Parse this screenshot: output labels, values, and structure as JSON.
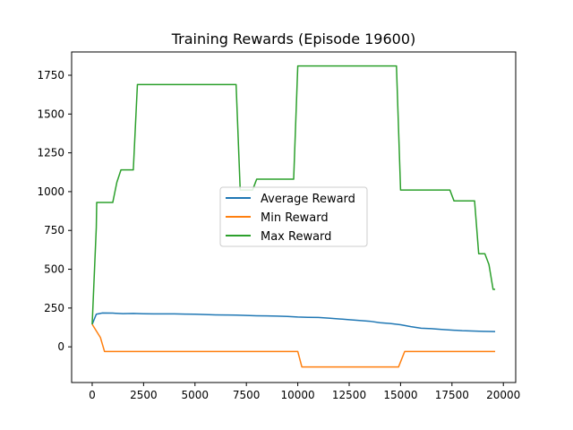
{
  "chart_data": {
    "type": "line",
    "title": "Training Rewards (Episode 19600)",
    "xlabel": "",
    "ylabel": "",
    "xlim": [
      -1000,
      20600
    ],
    "ylim": [
      -230,
      1900
    ],
    "x_ticks": [
      0,
      2500,
      5000,
      7500,
      10000,
      12500,
      15000,
      17500,
      20000
    ],
    "y_ticks": [
      0,
      250,
      500,
      750,
      1000,
      1250,
      1500,
      1750
    ],
    "grid": false,
    "legend_position": "center",
    "series": [
      {
        "name": "Average Reward",
        "color": "#1f77b4",
        "points": [
          [
            0,
            145
          ],
          [
            200,
            210
          ],
          [
            500,
            218
          ],
          [
            1000,
            217
          ],
          [
            1500,
            214
          ],
          [
            2000,
            215
          ],
          [
            2500,
            213
          ],
          [
            3000,
            212
          ],
          [
            3500,
            212
          ],
          [
            4000,
            212
          ],
          [
            4500,
            211
          ],
          [
            5000,
            210
          ],
          [
            5500,
            208
          ],
          [
            6000,
            206
          ],
          [
            6500,
            205
          ],
          [
            7000,
            204
          ],
          [
            7500,
            202
          ],
          [
            8000,
            200
          ],
          [
            8500,
            199
          ],
          [
            9000,
            198
          ],
          [
            9500,
            196
          ],
          [
            10000,
            192
          ],
          [
            10500,
            190
          ],
          [
            11000,
            189
          ],
          [
            11500,
            185
          ],
          [
            12000,
            180
          ],
          [
            12500,
            175
          ],
          [
            13000,
            170
          ],
          [
            13500,
            165
          ],
          [
            14000,
            155
          ],
          [
            14500,
            150
          ],
          [
            15000,
            142
          ],
          [
            15500,
            130
          ],
          [
            16000,
            120
          ],
          [
            16500,
            117
          ],
          [
            17000,
            112
          ],
          [
            17500,
            108
          ],
          [
            18000,
            104
          ],
          [
            18500,
            102
          ],
          [
            19000,
            100
          ],
          [
            19600,
            98
          ]
        ]
      },
      {
        "name": "Min Reward",
        "color": "#ff7f0e",
        "points": [
          [
            0,
            145
          ],
          [
            400,
            60
          ],
          [
            600,
            -30
          ],
          [
            10000,
            -30
          ],
          [
            10200,
            -130
          ],
          [
            14900,
            -130
          ],
          [
            15200,
            -30
          ],
          [
            19600,
            -30
          ]
        ]
      },
      {
        "name": "Max Reward",
        "color": "#2ca02c",
        "points": [
          [
            0,
            145
          ],
          [
            200,
            770
          ],
          [
            220,
            930
          ],
          [
            1000,
            930
          ],
          [
            1200,
            1060
          ],
          [
            1400,
            1140
          ],
          [
            2000,
            1140
          ],
          [
            2200,
            1690
          ],
          [
            7000,
            1690
          ],
          [
            7200,
            1010
          ],
          [
            7800,
            1010
          ],
          [
            8000,
            1080
          ],
          [
            9800,
            1080
          ],
          [
            10000,
            1810
          ],
          [
            14800,
            1810
          ],
          [
            15000,
            1010
          ],
          [
            17400,
            1010
          ],
          [
            17600,
            940
          ],
          [
            18600,
            940
          ],
          [
            18800,
            600
          ],
          [
            19100,
            600
          ],
          [
            19300,
            530
          ],
          [
            19500,
            370
          ],
          [
            19600,
            370
          ]
        ]
      }
    ]
  }
}
